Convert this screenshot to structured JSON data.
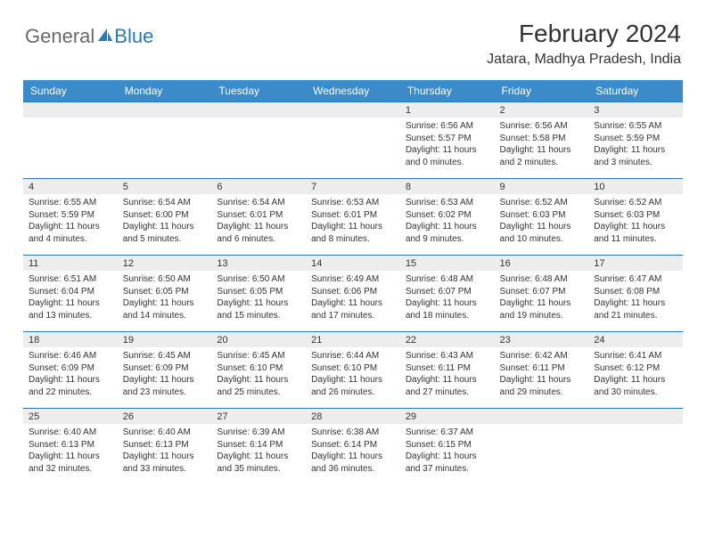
{
  "logo": {
    "general": "General",
    "blue": "Blue"
  },
  "title": "February 2024",
  "location": "Jatara, Madhya Pradesh, India",
  "colors": {
    "header_bg": "#3b8bc8",
    "header_text": "#ffffff",
    "daybar_bg": "#ededed",
    "daybar_border": "#2a78b8",
    "text": "#333333"
  },
  "daynames": [
    "Sunday",
    "Monday",
    "Tuesday",
    "Wednesday",
    "Thursday",
    "Friday",
    "Saturday"
  ],
  "weeks": [
    [
      null,
      null,
      null,
      null,
      {
        "n": "1",
        "sr": "6:56 AM",
        "ss": "5:57 PM",
        "dl": "11 hours and 0 minutes."
      },
      {
        "n": "2",
        "sr": "6:56 AM",
        "ss": "5:58 PM",
        "dl": "11 hours and 2 minutes."
      },
      {
        "n": "3",
        "sr": "6:55 AM",
        "ss": "5:59 PM",
        "dl": "11 hours and 3 minutes."
      }
    ],
    [
      {
        "n": "4",
        "sr": "6:55 AM",
        "ss": "5:59 PM",
        "dl": "11 hours and 4 minutes."
      },
      {
        "n": "5",
        "sr": "6:54 AM",
        "ss": "6:00 PM",
        "dl": "11 hours and 5 minutes."
      },
      {
        "n": "6",
        "sr": "6:54 AM",
        "ss": "6:01 PM",
        "dl": "11 hours and 6 minutes."
      },
      {
        "n": "7",
        "sr": "6:53 AM",
        "ss": "6:01 PM",
        "dl": "11 hours and 8 minutes."
      },
      {
        "n": "8",
        "sr": "6:53 AM",
        "ss": "6:02 PM",
        "dl": "11 hours and 9 minutes."
      },
      {
        "n": "9",
        "sr": "6:52 AM",
        "ss": "6:03 PM",
        "dl": "11 hours and 10 minutes."
      },
      {
        "n": "10",
        "sr": "6:52 AM",
        "ss": "6:03 PM",
        "dl": "11 hours and 11 minutes."
      }
    ],
    [
      {
        "n": "11",
        "sr": "6:51 AM",
        "ss": "6:04 PM",
        "dl": "11 hours and 13 minutes."
      },
      {
        "n": "12",
        "sr": "6:50 AM",
        "ss": "6:05 PM",
        "dl": "11 hours and 14 minutes."
      },
      {
        "n": "13",
        "sr": "6:50 AM",
        "ss": "6:05 PM",
        "dl": "11 hours and 15 minutes."
      },
      {
        "n": "14",
        "sr": "6:49 AM",
        "ss": "6:06 PM",
        "dl": "11 hours and 17 minutes."
      },
      {
        "n": "15",
        "sr": "6:48 AM",
        "ss": "6:07 PM",
        "dl": "11 hours and 18 minutes."
      },
      {
        "n": "16",
        "sr": "6:48 AM",
        "ss": "6:07 PM",
        "dl": "11 hours and 19 minutes."
      },
      {
        "n": "17",
        "sr": "6:47 AM",
        "ss": "6:08 PM",
        "dl": "11 hours and 21 minutes."
      }
    ],
    [
      {
        "n": "18",
        "sr": "6:46 AM",
        "ss": "6:09 PM",
        "dl": "11 hours and 22 minutes."
      },
      {
        "n": "19",
        "sr": "6:45 AM",
        "ss": "6:09 PM",
        "dl": "11 hours and 23 minutes."
      },
      {
        "n": "20",
        "sr": "6:45 AM",
        "ss": "6:10 PM",
        "dl": "11 hours and 25 minutes."
      },
      {
        "n": "21",
        "sr": "6:44 AM",
        "ss": "6:10 PM",
        "dl": "11 hours and 26 minutes."
      },
      {
        "n": "22",
        "sr": "6:43 AM",
        "ss": "6:11 PM",
        "dl": "11 hours and 27 minutes."
      },
      {
        "n": "23",
        "sr": "6:42 AM",
        "ss": "6:11 PM",
        "dl": "11 hours and 29 minutes."
      },
      {
        "n": "24",
        "sr": "6:41 AM",
        "ss": "6:12 PM",
        "dl": "11 hours and 30 minutes."
      }
    ],
    [
      {
        "n": "25",
        "sr": "6:40 AM",
        "ss": "6:13 PM",
        "dl": "11 hours and 32 minutes."
      },
      {
        "n": "26",
        "sr": "6:40 AM",
        "ss": "6:13 PM",
        "dl": "11 hours and 33 minutes."
      },
      {
        "n": "27",
        "sr": "6:39 AM",
        "ss": "6:14 PM",
        "dl": "11 hours and 35 minutes."
      },
      {
        "n": "28",
        "sr": "6:38 AM",
        "ss": "6:14 PM",
        "dl": "11 hours and 36 minutes."
      },
      {
        "n": "29",
        "sr": "6:37 AM",
        "ss": "6:15 PM",
        "dl": "11 hours and 37 minutes."
      },
      null,
      null
    ]
  ],
  "labels": {
    "sunrise": "Sunrise:",
    "sunset": "Sunset:",
    "daylight": "Daylight:"
  }
}
